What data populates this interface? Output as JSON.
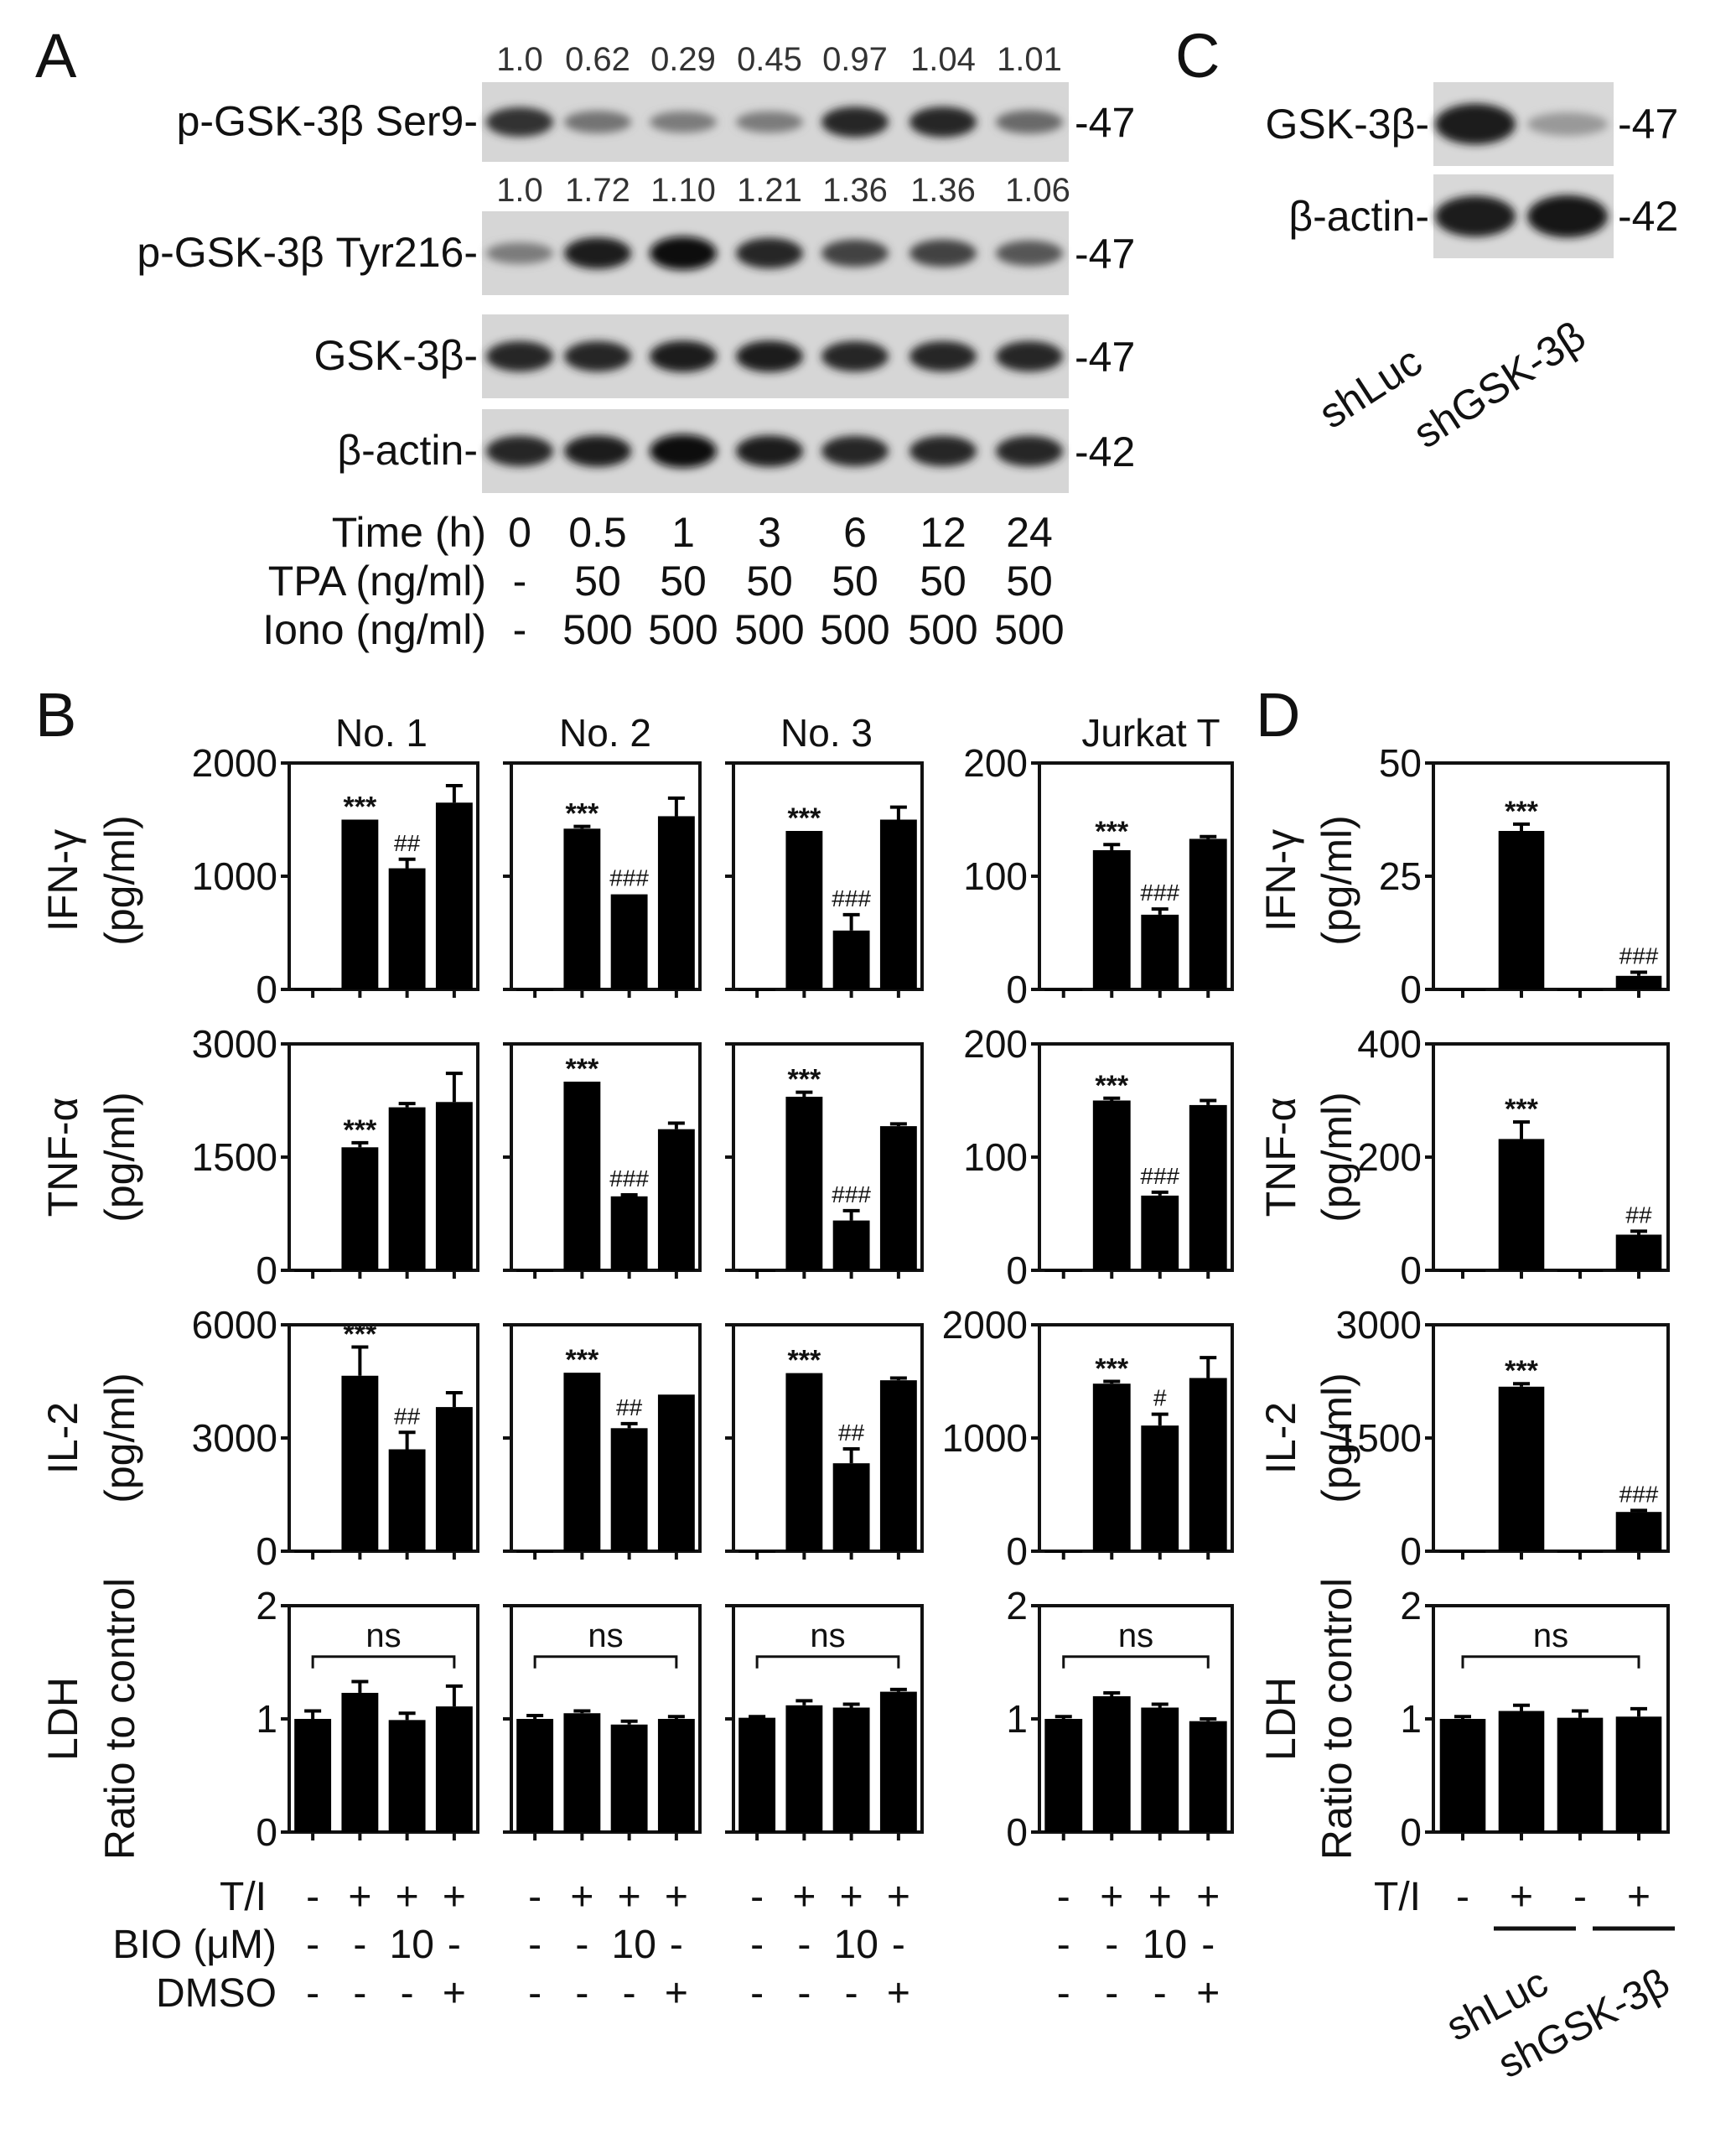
{
  "panel_letters": {
    "A": "A",
    "B": "B",
    "C": "C",
    "D": "D"
  },
  "panel_A": {
    "quant_row1": [
      "1.0",
      "0.62",
      "0.29",
      "0.45",
      "0.97",
      "1.04",
      "1.01"
    ],
    "quant_row2": [
      "1.0",
      "1.72",
      "1.10",
      "1.21",
      "1.36",
      "1.36",
      "1.06"
    ],
    "blots": [
      {
        "label": "p-GSK-3β Ser9-",
        "mw": "-47",
        "intensity": [
          0.8,
          0.45,
          0.4,
          0.4,
          0.85,
          0.85,
          0.5
        ]
      },
      {
        "label": "p-GSK-3β Tyr216-",
        "mw": "-47",
        "intensity": [
          0.4,
          0.9,
          1.0,
          0.85,
          0.7,
          0.7,
          0.6
        ]
      },
      {
        "label": "GSK-3β-",
        "mw": "-47",
        "intensity": [
          0.85,
          0.85,
          0.9,
          0.9,
          0.85,
          0.85,
          0.85
        ]
      },
      {
        "label": "β-actin-",
        "mw": "-42",
        "intensity": [
          0.85,
          0.9,
          1.0,
          0.9,
          0.85,
          0.85,
          0.85
        ]
      }
    ],
    "conditions": [
      {
        "label": "Time (h)",
        "values": [
          "0",
          "0.5",
          "1",
          "3",
          "6",
          "12",
          "24"
        ]
      },
      {
        "label": "TPA (ng/ml)",
        "values": [
          "-",
          "50",
          "50",
          "50",
          "50",
          "50",
          "50"
        ]
      },
      {
        "label": "Iono (ng/ml)",
        "values": [
          "-",
          "500",
          "500",
          "500",
          "500",
          "500",
          "500"
        ]
      }
    ]
  },
  "panel_C": {
    "blots": [
      {
        "label": "GSK-3β-",
        "mw": "-47",
        "intensity": [
          0.9,
          0.25
        ]
      },
      {
        "label": "β-actin-",
        "mw": "-42",
        "intensity": [
          0.9,
          0.95
        ]
      }
    ],
    "lanes": [
      "shLuc",
      "shGSK-3β"
    ]
  },
  "panel_B": {
    "column_titles": [
      "No. 1",
      "No. 2",
      "No. 3",
      "Jurkat T"
    ],
    "row_labels": [
      {
        "top": "IFN-γ",
        "bottom": "(pg/ml)"
      },
      {
        "top": "TNF-α",
        "bottom": "(pg/ml)"
      },
      {
        "top": "IL-2",
        "bottom": "(pg/ml)"
      },
      {
        "top": "LDH",
        "bottom": "Ratio to control"
      }
    ],
    "treatment_rows": [
      {
        "label": "T/I",
        "values": [
          "-",
          "+",
          "+",
          "+"
        ]
      },
      {
        "label": "BIO (μM)",
        "values": [
          "-",
          "-",
          "10",
          "-"
        ]
      },
      {
        "label": "DMSO",
        "values": [
          "-",
          "-",
          "-",
          "+"
        ]
      }
    ]
  },
  "panel_D": {
    "row_labels": [
      {
        "top": "IFN-γ",
        "bottom": "(pg/ml)"
      },
      {
        "top": "TNF-α",
        "bottom": "(pg/ml)"
      },
      {
        "top": "IL-2",
        "bottom": "(pg/ml)"
      },
      {
        "top": "LDH",
        "bottom": "Ratio to control"
      }
    ],
    "treatment_label": "T/I",
    "treatment_values": [
      "-",
      "+",
      "-",
      "+"
    ],
    "groups": [
      "shLuc",
      "shGSK-3β"
    ]
  },
  "chart_data": [
    {
      "id": "B-IFN-No1",
      "type": "bar",
      "ylim": [
        0,
        2000
      ],
      "yticks": [
        "0",
        "1000",
        "2000"
      ],
      "values": [
        10,
        1500,
        1070,
        1650
      ],
      "errors": [
        0,
        0,
        80,
        150
      ],
      "annotations": [
        "",
        "***",
        "##",
        ""
      ]
    },
    {
      "id": "B-IFN-No2",
      "type": "bar",
      "ylim": [
        0,
        2000
      ],
      "yticks": [],
      "values": [
        0,
        1420,
        840,
        1530
      ],
      "errors": [
        0,
        20,
        0,
        160
      ],
      "annotations": [
        "",
        "***",
        "###",
        ""
      ]
    },
    {
      "id": "B-IFN-No3",
      "type": "bar",
      "ylim": [
        0,
        2000
      ],
      "yticks": [],
      "values": [
        0,
        1400,
        520,
        1500
      ],
      "errors": [
        0,
        0,
        140,
        110
      ],
      "annotations": [
        "",
        "***",
        "###",
        ""
      ]
    },
    {
      "id": "B-IFN-Jurkat",
      "type": "bar",
      "ylim": [
        0,
        200
      ],
      "yticks": [
        "0",
        "100",
        "200"
      ],
      "values": [
        0,
        123,
        66,
        133
      ],
      "errors": [
        0,
        5,
        5,
        2
      ],
      "annotations": [
        "",
        "***",
        "###",
        ""
      ]
    },
    {
      "id": "B-TNF-No1",
      "type": "bar",
      "ylim": [
        0,
        3000
      ],
      "yticks": [
        "0",
        "1500",
        "3000"
      ],
      "values": [
        0,
        1630,
        2160,
        2230
      ],
      "errors": [
        0,
        60,
        50,
        380
      ],
      "annotations": [
        "",
        "***",
        "",
        ""
      ]
    },
    {
      "id": "B-TNF-No2",
      "type": "bar",
      "ylim": [
        0,
        3000
      ],
      "yticks": [],
      "values": [
        0,
        2500,
        980,
        1870
      ],
      "errors": [
        0,
        0,
        20,
        80
      ],
      "annotations": [
        "",
        "***",
        "###",
        ""
      ]
    },
    {
      "id": "B-TNF-No3",
      "type": "bar",
      "ylim": [
        0,
        3000
      ],
      "yticks": [],
      "values": [
        0,
        2300,
        660,
        1910
      ],
      "errors": [
        0,
        60,
        130,
        30
      ],
      "annotations": [
        "",
        "***",
        "###",
        ""
      ]
    },
    {
      "id": "B-TNF-Jurkat",
      "type": "bar",
      "ylim": [
        0,
        200
      ],
      "yticks": [
        "0",
        "100",
        "200"
      ],
      "values": [
        0,
        150,
        66,
        146
      ],
      "errors": [
        0,
        2,
        3,
        4
      ],
      "annotations": [
        "",
        "***",
        "###",
        ""
      ]
    },
    {
      "id": "B-IL2-No1",
      "type": "bar",
      "ylim": [
        0,
        6000
      ],
      "yticks": [
        "0",
        "3000",
        "6000"
      ],
      "values": [
        0,
        4650,
        2700,
        3820
      ],
      "errors": [
        0,
        760,
        450,
        380
      ],
      "annotations": [
        "",
        "***",
        "##",
        ""
      ]
    },
    {
      "id": "B-IL2-No2",
      "type": "bar",
      "ylim": [
        0,
        6000
      ],
      "yticks": [],
      "values": [
        0,
        4730,
        3260,
        4150
      ],
      "errors": [
        0,
        0,
        120,
        0
      ],
      "annotations": [
        "",
        "***",
        "##",
        ""
      ]
    },
    {
      "id": "B-IL2-No3",
      "type": "bar",
      "ylim": [
        0,
        6000
      ],
      "yticks": [],
      "values": [
        0,
        4720,
        2330,
        4530
      ],
      "errors": [
        0,
        0,
        380,
        60
      ],
      "annotations": [
        "",
        "***",
        "##",
        ""
      ]
    },
    {
      "id": "B-IL2-Jurkat",
      "type": "bar",
      "ylim": [
        0,
        2000
      ],
      "yticks": [
        "0",
        "1000",
        "2000"
      ],
      "values": [
        0,
        1480,
        1110,
        1530
      ],
      "errors": [
        0,
        20,
        100,
        180
      ],
      "annotations": [
        "",
        "***",
        "#",
        ""
      ]
    },
    {
      "id": "B-LDH-No1",
      "type": "bar",
      "ylim": [
        0,
        2
      ],
      "yticks": [
        "0",
        "1",
        "2"
      ],
      "values": [
        1.0,
        1.23,
        0.99,
        1.11
      ],
      "errors": [
        0.07,
        0.1,
        0.06,
        0.18
      ],
      "annotations": [],
      "bracket": "ns"
    },
    {
      "id": "B-LDH-No2",
      "type": "bar",
      "ylim": [
        0,
        2
      ],
      "yticks": [],
      "values": [
        1.0,
        1.05,
        0.95,
        1.0
      ],
      "errors": [
        0.03,
        0.02,
        0.03,
        0.02
      ],
      "annotations": [],
      "bracket": "ns"
    },
    {
      "id": "B-LDH-No3",
      "type": "bar",
      "ylim": [
        0,
        2
      ],
      "yticks": [],
      "values": [
        1.01,
        1.12,
        1.1,
        1.24
      ],
      "errors": [
        0.01,
        0.04,
        0.03,
        0.02
      ],
      "annotations": [],
      "bracket": "ns"
    },
    {
      "id": "B-LDH-Jurkat",
      "type": "bar",
      "ylim": [
        0,
        2
      ],
      "yticks": [
        "0",
        "1",
        "2"
      ],
      "values": [
        1.0,
        1.2,
        1.1,
        0.98
      ],
      "errors": [
        0.02,
        0.03,
        0.03,
        0.02
      ],
      "annotations": [],
      "bracket": "ns"
    },
    {
      "id": "D-IFN",
      "type": "bar",
      "ylim": [
        0,
        50
      ],
      "yticks": [
        "0",
        "25",
        "50"
      ],
      "values": [
        0,
        35,
        0,
        3
      ],
      "errors": [
        0,
        1.5,
        0,
        0.8
      ],
      "annotations": [
        "",
        "***",
        "",
        "###"
      ]
    },
    {
      "id": "D-TNF",
      "type": "bar",
      "ylim": [
        0,
        400
      ],
      "yticks": [
        "0",
        "200",
        "400"
      ],
      "values": [
        0,
        232,
        0,
        63
      ],
      "errors": [
        0,
        30,
        0,
        6
      ],
      "annotations": [
        "",
        "***",
        "",
        "##"
      ]
    },
    {
      "id": "D-IL2",
      "type": "bar",
      "ylim": [
        0,
        3000
      ],
      "yticks": [
        "0",
        "1500",
        "3000"
      ],
      "values": [
        0,
        2180,
        0,
        520
      ],
      "errors": [
        0,
        40,
        0,
        20
      ],
      "annotations": [
        "",
        "***",
        "",
        "###"
      ]
    },
    {
      "id": "D-LDH",
      "type": "bar",
      "ylim": [
        0,
        2
      ],
      "yticks": [
        "0",
        "1",
        "2"
      ],
      "values": [
        1.0,
        1.07,
        1.01,
        1.02
      ],
      "errors": [
        0.02,
        0.05,
        0.06,
        0.07
      ],
      "annotations": [],
      "bracket": "ns"
    }
  ]
}
